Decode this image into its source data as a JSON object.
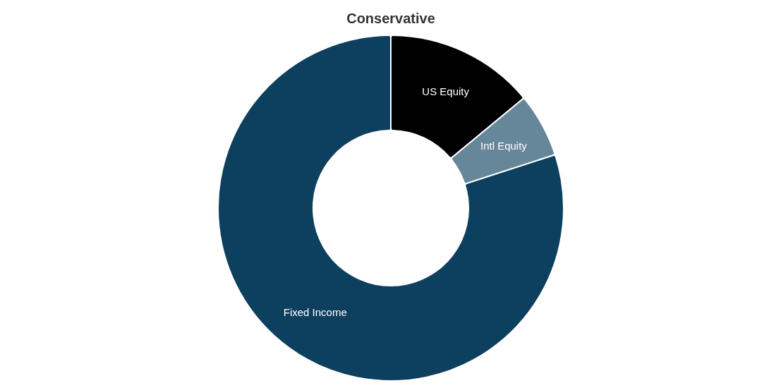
{
  "chart_data": {
    "type": "donut",
    "title": "Conservative",
    "categories": [
      "US Equity",
      "Intl Equity",
      "Fixed Income"
    ],
    "values": [
      14,
      6,
      80
    ],
    "colors": [
      "#000000",
      "#668699",
      "#0d3f5e"
    ]
  }
}
